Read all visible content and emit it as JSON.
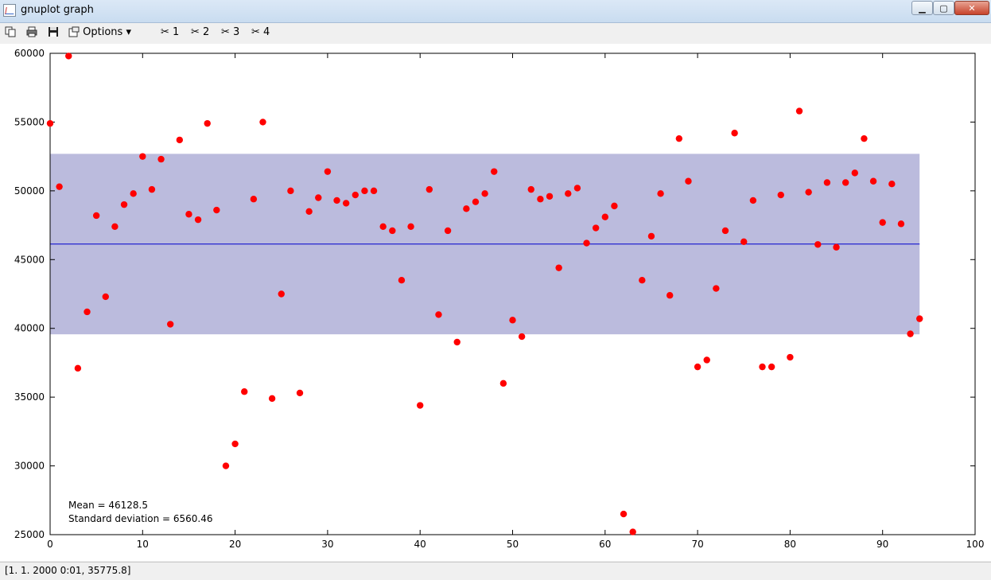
{
  "window": {
    "title": "gnuplot graph",
    "buttons": {
      "minimize": "▁",
      "maximize": "▢",
      "close": "✕"
    }
  },
  "toolbar": {
    "copy_icon": "copy-icon",
    "print_icon": "print-icon",
    "save_icon": "save-icon",
    "options_icon": "options-icon",
    "options_label": "Options",
    "options_arrow": "▾",
    "scissor_icon": "scissors-icon",
    "zoom_buttons": [
      "1",
      "2",
      "3",
      "4"
    ]
  },
  "annotations": {
    "mean": "Mean = 46128.5",
    "stddev": "Standard deviation = 6560.46"
  },
  "status": {
    "text": "[1. 1. 2000 0:01,  35775.8]"
  },
  "colors": {
    "points": "#ff0000",
    "mean_line": "#0000cd",
    "band": "#bbbbdd"
  },
  "chart_data": {
    "type": "scatter",
    "xlim": [
      0,
      100
    ],
    "ylim": [
      25000,
      60000
    ],
    "xticks": [
      0,
      10,
      20,
      30,
      40,
      50,
      60,
      70,
      80,
      90,
      100
    ],
    "yticks": [
      25000,
      30000,
      35000,
      40000,
      45000,
      50000,
      55000,
      60000
    ],
    "mean": 46128.5,
    "stddev": 6560.46,
    "band": [
      39568.0,
      52689.0
    ],
    "band_x": [
      0,
      94
    ],
    "grid": false,
    "x": [
      0,
      1,
      2,
      3,
      4,
      5,
      6,
      7,
      8,
      9,
      10,
      11,
      12,
      13,
      14,
      15,
      16,
      17,
      18,
      19,
      20,
      21,
      22,
      23,
      24,
      25,
      26,
      27,
      28,
      29,
      30,
      31,
      32,
      33,
      34,
      35,
      36,
      37,
      38,
      39,
      40,
      41,
      42,
      43,
      44,
      45,
      46,
      47,
      48,
      49,
      50,
      51,
      52,
      53,
      54,
      55,
      56,
      57,
      58,
      59,
      60,
      61,
      62,
      63,
      64,
      65,
      66,
      67,
      68,
      69,
      70,
      71,
      72,
      73,
      74,
      75,
      76,
      77,
      78,
      79,
      80,
      81,
      82,
      83,
      84,
      85,
      86,
      87,
      88,
      89,
      90,
      91,
      92,
      93,
      94
    ],
    "y": [
      54900,
      50300,
      59800,
      37100,
      41200,
      48200,
      42300,
      47400,
      49000,
      49800,
      52500,
      50100,
      52300,
      40300,
      53700,
      48300,
      47900,
      54900,
      48600,
      30000,
      31600,
      35400,
      49400,
      55000,
      34900,
      42500,
      50000,
      35300,
      48500,
      49500,
      51400,
      49300,
      49100,
      49700,
      50000,
      50000,
      47400,
      47100,
      43500,
      47400,
      34400,
      50100,
      41000,
      47100,
      39000,
      48700,
      49200,
      49800,
      51400,
      36000,
      40600,
      39400,
      50100,
      49400,
      49600,
      44400,
      49800,
      50200,
      46200,
      47300,
      48100,
      48900,
      26500,
      25200,
      43500,
      46700,
      49800,
      42400,
      53800,
      50700,
      37200,
      37700,
      42900,
      47100,
      54200,
      46300,
      49300,
      37200,
      37200,
      49700,
      37900,
      55800,
      49900,
      46100,
      50600,
      45900,
      50600,
      51300,
      53800,
      50700,
      47700,
      50500,
      47600,
      39600,
      40700
    ]
  }
}
